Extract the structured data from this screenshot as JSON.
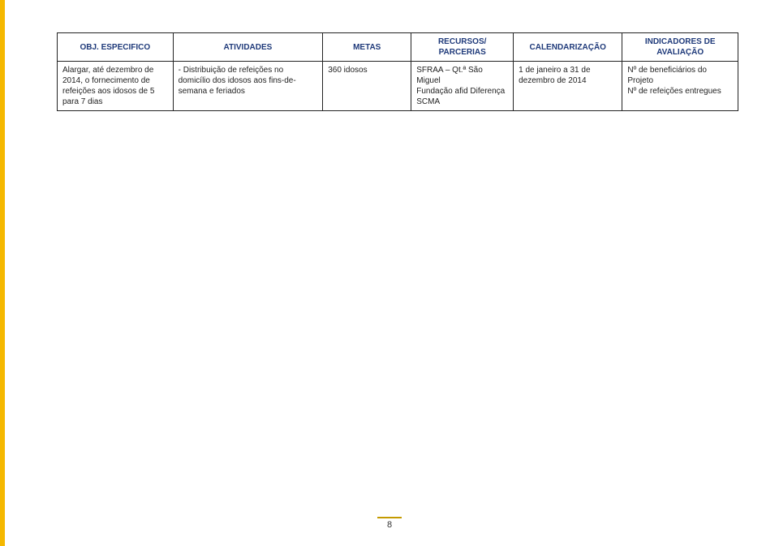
{
  "colors": {
    "left_bar": "#f5b800",
    "header_text": "#1f3a7a",
    "cell_text": "#222222",
    "border": "#222222",
    "background": "#ffffff",
    "page_line": "#c49a00"
  },
  "table": {
    "headers": {
      "obj": "OBJ. ESPECIFICO",
      "atv": "ATIVIDADES",
      "met": "METAS",
      "rec": "RECURSOS/ PARCERIAS",
      "cal": "CALENDARIZAÇÃO",
      "ind": "INDICADORES DE AVALIAÇÃO"
    },
    "row": {
      "obj": "Alargar, até dezembro de 2014, o fornecimento de refeições aos idosos de 5 para 7 dias",
      "atv": "- Distribuição de refeições no domicílio dos idosos aos fins-de-semana e feriados",
      "met": "360 idosos",
      "rec": "SFRAA – Qt.ª São Miguel\nFundação afid Diferença\nSCMA",
      "cal": "1 de janeiro a 31 de dezembro de 2014",
      "ind": "Nº de beneficiários do Projeto\nNº de refeições entregues"
    }
  },
  "page_number": "8"
}
